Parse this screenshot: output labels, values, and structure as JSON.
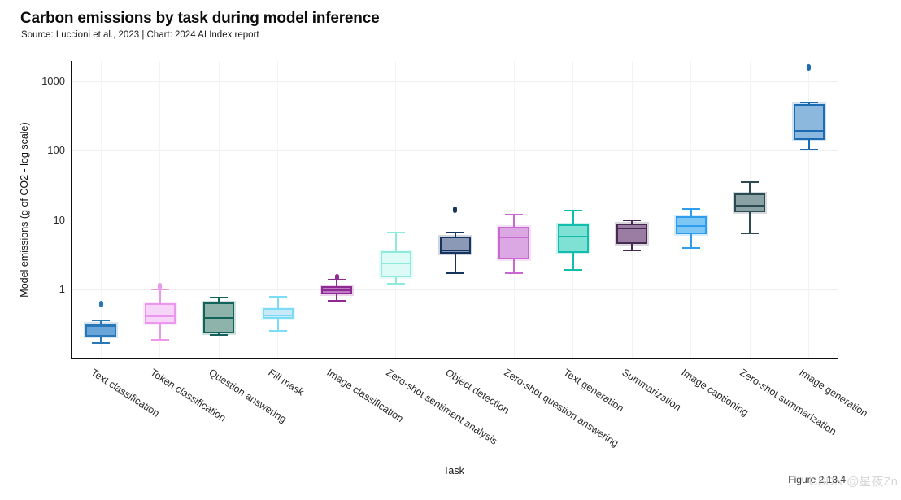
{
  "header": {
    "title": "Carbon emissions by task during model inference",
    "subtitle": "Source: Luccioni et al., 2023 | Chart: 2024 AI Index report"
  },
  "figure_label": "Figure 2.13.4",
  "watermark": "CSDN @星夜Zn",
  "chart_data": {
    "type": "boxplot",
    "title": "Carbon emissions by task during model inference",
    "xlabel": "Task",
    "ylabel": "Model emissions (g of CO2 - log scale)",
    "yscale": "log",
    "ylim": [
      0.1,
      2000
    ],
    "yticks": [
      1,
      10,
      100,
      1000
    ],
    "grid": true,
    "legend": "none",
    "categories": [
      "Text classification",
      "Token classification",
      "Question answering",
      "Fill mask",
      "Image classification",
      "Zero-shot sentiment analysis",
      "Object detection",
      "Zero-shot question answering",
      "Text generation",
      "Summarization",
      "Image captioning",
      "Zero-shot summarization",
      "Image generation"
    ],
    "boxes": [
      {
        "label": "Text classification",
        "low": 0.17,
        "q1": 0.21,
        "median": 0.3,
        "q3": 0.32,
        "high": 0.36,
        "outliers": [
          0.62
        ],
        "fill": "#6aa5d9",
        "stroke": "#2878b8"
      },
      {
        "label": "Token classification",
        "low": 0.19,
        "q1": 0.32,
        "median": 0.41,
        "q3": 0.63,
        "high": 1.0,
        "outliers": [
          1.1
        ],
        "fill": "#f7d5f8",
        "stroke": "#eb97ee"
      },
      {
        "label": "Question answering",
        "low": 0.22,
        "q1": 0.23,
        "median": 0.39,
        "q3": 0.65,
        "high": 0.76,
        "outliers": [],
        "fill": "#8db3ab",
        "stroke": "#14635a"
      },
      {
        "label": "Fill mask",
        "low": 0.25,
        "q1": 0.38,
        "median": 0.42,
        "q3": 0.54,
        "high": 0.78,
        "outliers": [],
        "fill": "#c8e9f8",
        "stroke": "#7cdcf8"
      },
      {
        "label": "Image classification",
        "low": 0.69,
        "q1": 0.85,
        "median": 0.97,
        "q3": 1.1,
        "high": 1.4,
        "outliers": [
          1.5
        ],
        "fill": "#bd7cc1",
        "stroke": "#8f2996"
      },
      {
        "label": "Zero-shot sentiment analysis",
        "low": 1.2,
        "q1": 1.5,
        "median": 2.4,
        "q3": 3.6,
        "high": 6.6,
        "outliers": [],
        "fill": "#dcfaf6",
        "stroke": "#90eadc"
      },
      {
        "label": "Object detection",
        "low": 1.7,
        "q1": 3.3,
        "median": 3.7,
        "q3": 5.8,
        "high": 6.6,
        "outliers": [
          14
        ],
        "fill": "#8b99b7",
        "stroke": "#16355e"
      },
      {
        "label": "Zero-shot question answering",
        "low": 1.7,
        "q1": 2.7,
        "median": 5.6,
        "q3": 8.0,
        "high": 12,
        "outliers": [],
        "fill": "#dba8e3",
        "stroke": "#c968d2"
      },
      {
        "label": "Text generation",
        "low": 1.9,
        "q1": 3.4,
        "median": 5.8,
        "q3": 8.7,
        "high": 13.7,
        "outliers": [],
        "fill": "#7fe0d4",
        "stroke": "#12bdae"
      },
      {
        "label": "Summarization",
        "low": 3.7,
        "q1": 4.5,
        "median": 7.6,
        "q3": 8.9,
        "high": 9.9,
        "outliers": [],
        "fill": "#9b7da3",
        "stroke": "#472a52"
      },
      {
        "label": "Image captioning",
        "low": 4.0,
        "q1": 6.3,
        "median": 8.2,
        "q3": 11.4,
        "high": 14.4,
        "outliers": [],
        "fill": "#7ec6f4",
        "stroke": "#2f9ced"
      },
      {
        "label": "Zero-shot summarization",
        "low": 6.5,
        "q1": 13,
        "median": 16,
        "q3": 24,
        "high": 35,
        "outliers": [],
        "fill": "#8aa2a3",
        "stroke": "#2c4a52"
      },
      {
        "label": "Image generation",
        "low": 105,
        "q1": 145,
        "median": 195,
        "q3": 470,
        "high": 500,
        "outliers": [
          1600
        ],
        "fill": "#8cb8de",
        "stroke": "#1b6cb2"
      }
    ]
  }
}
